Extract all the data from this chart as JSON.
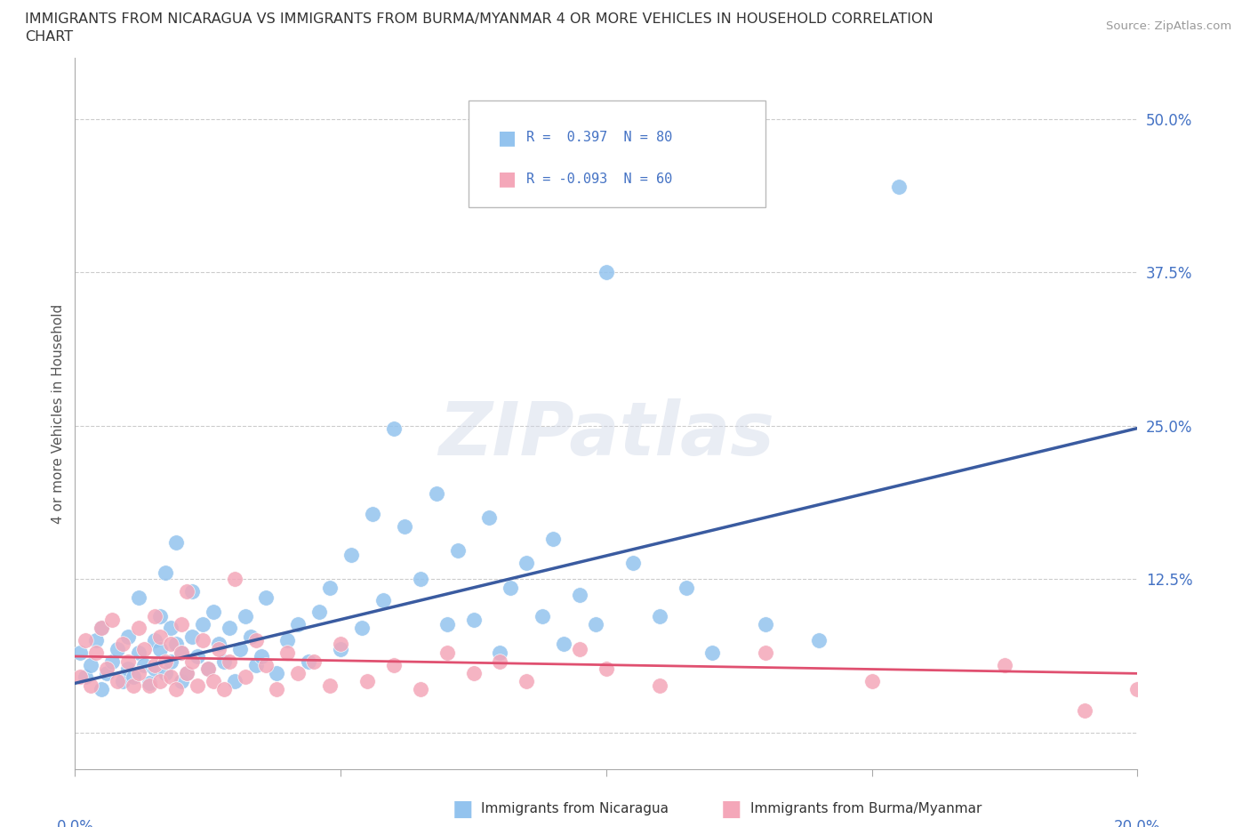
{
  "title_line1": "IMMIGRANTS FROM NICARAGUA VS IMMIGRANTS FROM BURMA/MYANMAR 4 OR MORE VEHICLES IN HOUSEHOLD CORRELATION",
  "title_line2": "CHART",
  "source": "Source: ZipAtlas.com",
  "ylabel": "4 or more Vehicles in Household",
  "ytick_vals": [
    0.0,
    0.125,
    0.25,
    0.375,
    0.5
  ],
  "ytick_labels": [
    "",
    "12.5%",
    "25.0%",
    "37.5%",
    "50.0%"
  ],
  "xlim": [
    0.0,
    0.2
  ],
  "ylim": [
    -0.03,
    0.55
  ],
  "color_nicaragua": "#93C3EE",
  "color_burma": "#F4A7B9",
  "trendline_nicaragua_color": "#3A5BA0",
  "trendline_burma_color": "#E05070",
  "watermark": "ZIPatlas",
  "nic_trend_x0": 0.0,
  "nic_trend_y0": 0.04,
  "nic_trend_x1": 0.2,
  "nic_trend_y1": 0.248,
  "bur_trend_x0": 0.0,
  "bur_trend_y0": 0.062,
  "bur_trend_x1": 0.2,
  "bur_trend_y1": 0.048,
  "scatter_nicaragua": [
    [
      0.001,
      0.065
    ],
    [
      0.002,
      0.045
    ],
    [
      0.003,
      0.055
    ],
    [
      0.004,
      0.075
    ],
    [
      0.005,
      0.035
    ],
    [
      0.005,
      0.085
    ],
    [
      0.006,
      0.048
    ],
    [
      0.007,
      0.058
    ],
    [
      0.008,
      0.068
    ],
    [
      0.009,
      0.042
    ],
    [
      0.01,
      0.052
    ],
    [
      0.01,
      0.078
    ],
    [
      0.011,
      0.045
    ],
    [
      0.012,
      0.065
    ],
    [
      0.012,
      0.11
    ],
    [
      0.013,
      0.055
    ],
    [
      0.014,
      0.04
    ],
    [
      0.015,
      0.075
    ],
    [
      0.015,
      0.052
    ],
    [
      0.016,
      0.068
    ],
    [
      0.016,
      0.095
    ],
    [
      0.017,
      0.048
    ],
    [
      0.017,
      0.13
    ],
    [
      0.018,
      0.058
    ],
    [
      0.018,
      0.085
    ],
    [
      0.019,
      0.072
    ],
    [
      0.019,
      0.155
    ],
    [
      0.02,
      0.042
    ],
    [
      0.02,
      0.065
    ],
    [
      0.021,
      0.048
    ],
    [
      0.022,
      0.078
    ],
    [
      0.022,
      0.115
    ],
    [
      0.023,
      0.062
    ],
    [
      0.024,
      0.088
    ],
    [
      0.025,
      0.052
    ],
    [
      0.026,
      0.098
    ],
    [
      0.027,
      0.072
    ],
    [
      0.028,
      0.058
    ],
    [
      0.029,
      0.085
    ],
    [
      0.03,
      0.042
    ],
    [
      0.031,
      0.068
    ],
    [
      0.032,
      0.095
    ],
    [
      0.033,
      0.078
    ],
    [
      0.034,
      0.055
    ],
    [
      0.035,
      0.062
    ],
    [
      0.036,
      0.11
    ],
    [
      0.038,
      0.048
    ],
    [
      0.04,
      0.075
    ],
    [
      0.042,
      0.088
    ],
    [
      0.044,
      0.058
    ],
    [
      0.046,
      0.098
    ],
    [
      0.048,
      0.118
    ],
    [
      0.05,
      0.068
    ],
    [
      0.052,
      0.145
    ],
    [
      0.054,
      0.085
    ],
    [
      0.056,
      0.178
    ],
    [
      0.058,
      0.108
    ],
    [
      0.06,
      0.248
    ],
    [
      0.062,
      0.168
    ],
    [
      0.065,
      0.125
    ],
    [
      0.068,
      0.195
    ],
    [
      0.07,
      0.088
    ],
    [
      0.072,
      0.148
    ],
    [
      0.075,
      0.092
    ],
    [
      0.078,
      0.175
    ],
    [
      0.08,
      0.065
    ],
    [
      0.082,
      0.118
    ],
    [
      0.085,
      0.138
    ],
    [
      0.088,
      0.095
    ],
    [
      0.09,
      0.158
    ],
    [
      0.092,
      0.072
    ],
    [
      0.095,
      0.112
    ],
    [
      0.098,
      0.088
    ],
    [
      0.1,
      0.375
    ],
    [
      0.105,
      0.138
    ],
    [
      0.11,
      0.095
    ],
    [
      0.115,
      0.118
    ],
    [
      0.12,
      0.065
    ],
    [
      0.13,
      0.088
    ],
    [
      0.14,
      0.075
    ],
    [
      0.155,
      0.445
    ]
  ],
  "scatter_burma": [
    [
      0.001,
      0.045
    ],
    [
      0.002,
      0.075
    ],
    [
      0.003,
      0.038
    ],
    [
      0.004,
      0.065
    ],
    [
      0.005,
      0.085
    ],
    [
      0.006,
      0.052
    ],
    [
      0.007,
      0.092
    ],
    [
      0.008,
      0.042
    ],
    [
      0.009,
      0.072
    ],
    [
      0.01,
      0.058
    ],
    [
      0.011,
      0.038
    ],
    [
      0.012,
      0.048
    ],
    [
      0.012,
      0.085
    ],
    [
      0.013,
      0.068
    ],
    [
      0.014,
      0.038
    ],
    [
      0.015,
      0.055
    ],
    [
      0.015,
      0.095
    ],
    [
      0.016,
      0.042
    ],
    [
      0.016,
      0.078
    ],
    [
      0.017,
      0.058
    ],
    [
      0.018,
      0.045
    ],
    [
      0.018,
      0.072
    ],
    [
      0.019,
      0.035
    ],
    [
      0.02,
      0.065
    ],
    [
      0.02,
      0.088
    ],
    [
      0.021,
      0.048
    ],
    [
      0.021,
      0.115
    ],
    [
      0.022,
      0.058
    ],
    [
      0.023,
      0.038
    ],
    [
      0.024,
      0.075
    ],
    [
      0.025,
      0.052
    ],
    [
      0.026,
      0.042
    ],
    [
      0.027,
      0.068
    ],
    [
      0.028,
      0.035
    ],
    [
      0.029,
      0.058
    ],
    [
      0.03,
      0.125
    ],
    [
      0.032,
      0.045
    ],
    [
      0.034,
      0.075
    ],
    [
      0.036,
      0.055
    ],
    [
      0.038,
      0.035
    ],
    [
      0.04,
      0.065
    ],
    [
      0.042,
      0.048
    ],
    [
      0.045,
      0.058
    ],
    [
      0.048,
      0.038
    ],
    [
      0.05,
      0.072
    ],
    [
      0.055,
      0.042
    ],
    [
      0.06,
      0.055
    ],
    [
      0.065,
      0.035
    ],
    [
      0.07,
      0.065
    ],
    [
      0.075,
      0.048
    ],
    [
      0.08,
      0.058
    ],
    [
      0.085,
      0.042
    ],
    [
      0.095,
      0.068
    ],
    [
      0.1,
      0.052
    ],
    [
      0.11,
      0.038
    ],
    [
      0.13,
      0.065
    ],
    [
      0.15,
      0.042
    ],
    [
      0.175,
      0.055
    ],
    [
      0.19,
      0.018
    ],
    [
      0.2,
      0.035
    ]
  ]
}
